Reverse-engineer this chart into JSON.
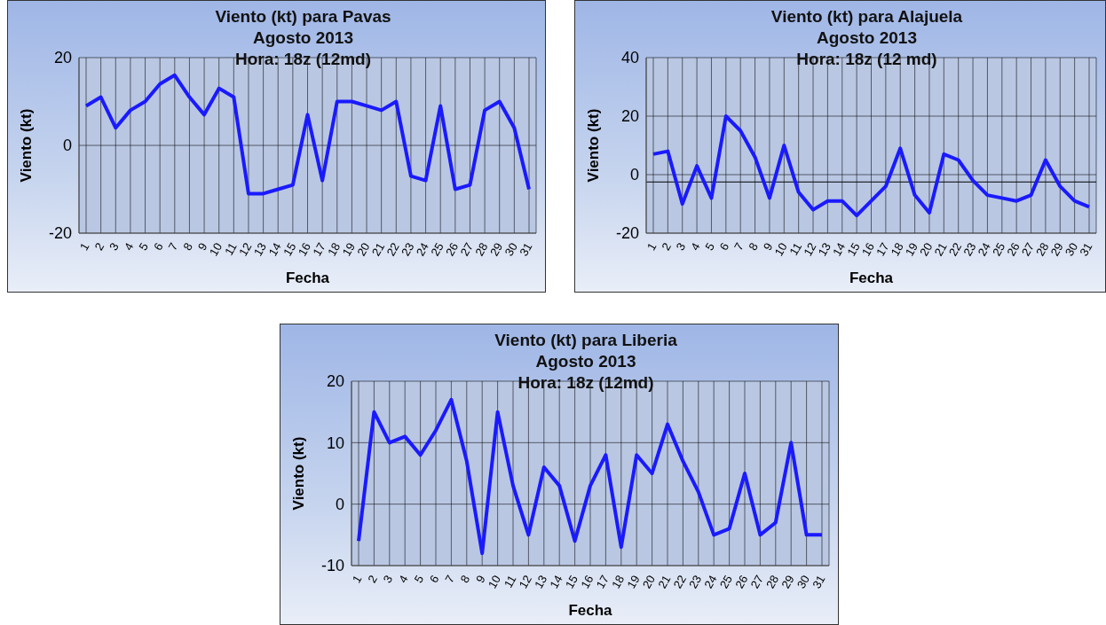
{
  "chart_data": [
    {
      "type": "line",
      "title": "Viento (kt) para Pavas",
      "subtitle": "Agosto 2013",
      "annotations": [
        "Hora: 18z (12md)"
      ],
      "xlabel": "Fecha",
      "ylabel": "Viento (kt)",
      "categories": [
        "1",
        "2",
        "3",
        "4",
        "5",
        "6",
        "7",
        "8",
        "9",
        "10",
        "11",
        "12",
        "13",
        "14",
        "15",
        "16",
        "17",
        "18",
        "19",
        "20",
        "21",
        "22",
        "23",
        "24",
        "25",
        "26",
        "27",
        "28",
        "29",
        "30",
        "31"
      ],
      "series": [
        {
          "color": "#1a1aff",
          "values": [
            9,
            11,
            4,
            8,
            10,
            14,
            16,
            11,
            7,
            13,
            11,
            -11,
            -11,
            -10,
            -9,
            7,
            -8,
            10,
            10,
            9,
            8,
            10,
            -7,
            -8,
            9,
            -10,
            -9,
            8,
            10,
            4,
            -10
          ]
        }
      ],
      "ylim": [
        -20,
        20
      ],
      "yticks": [
        -20,
        0,
        20
      ],
      "grid": true
    },
    {
      "type": "line",
      "title": "Viento (kt) para Alajuela",
      "subtitle": "Agosto 2013",
      "annotations": [
        "Hora: 18z (12 md)"
      ],
      "xlabel": "Fecha",
      "ylabel": "Viento (kt)",
      "categories": [
        "1",
        "2",
        "3",
        "4",
        "5",
        "6",
        "7",
        "8",
        "9",
        "10",
        "11",
        "12",
        "13",
        "14",
        "15",
        "16",
        "17",
        "18",
        "19",
        "20",
        "21",
        "22",
        "23",
        "24",
        "25",
        "26",
        "27",
        "28",
        "29",
        "30",
        "31"
      ],
      "series": [
        {
          "color": "#1a1aff",
          "values": [
            7,
            8,
            -10,
            3,
            -8,
            20,
            15,
            6,
            -8,
            10,
            -6,
            -12,
            -9,
            -9,
            -14,
            -9,
            -4,
            9,
            -7,
            -13,
            7,
            5,
            -2,
            -7,
            -8,
            -9,
            -7,
            5,
            -4,
            -9,
            -11
          ]
        }
      ],
      "ylim": [
        -20,
        40
      ],
      "yticks": [
        -20,
        0,
        20,
        40
      ],
      "grid": true,
      "ref_lines": [
        {
          "axis": "y",
          "value": -2.5,
          "color": "#000000"
        }
      ]
    },
    {
      "type": "line",
      "title": "Viento (kt) para Liberia",
      "subtitle": "Agosto 2013",
      "annotations": [
        "Hora: 18z (12md)"
      ],
      "xlabel": "Fecha",
      "ylabel": "Viento (kt)",
      "categories": [
        "1",
        "2",
        "3",
        "4",
        "5",
        "6",
        "7",
        "8",
        "9",
        "10",
        "11",
        "12",
        "13",
        "14",
        "15",
        "16",
        "17",
        "18",
        "19",
        "20",
        "21",
        "22",
        "23",
        "24",
        "25",
        "26",
        "27",
        "28",
        "29",
        "30",
        "31"
      ],
      "series": [
        {
          "color": "#1a1aff",
          "values": [
            -6,
            15,
            10,
            11,
            8,
            12,
            17,
            7,
            -8,
            15,
            3,
            -5,
            6,
            3,
            -6,
            3,
            8,
            -7,
            8,
            5,
            13,
            7,
            2,
            -5,
            -4,
            5,
            -5,
            -3,
            10,
            -5,
            -5
          ]
        }
      ],
      "ylim": [
        -10,
        20
      ],
      "yticks": [
        -10,
        0,
        10,
        20
      ],
      "grid": true
    }
  ]
}
